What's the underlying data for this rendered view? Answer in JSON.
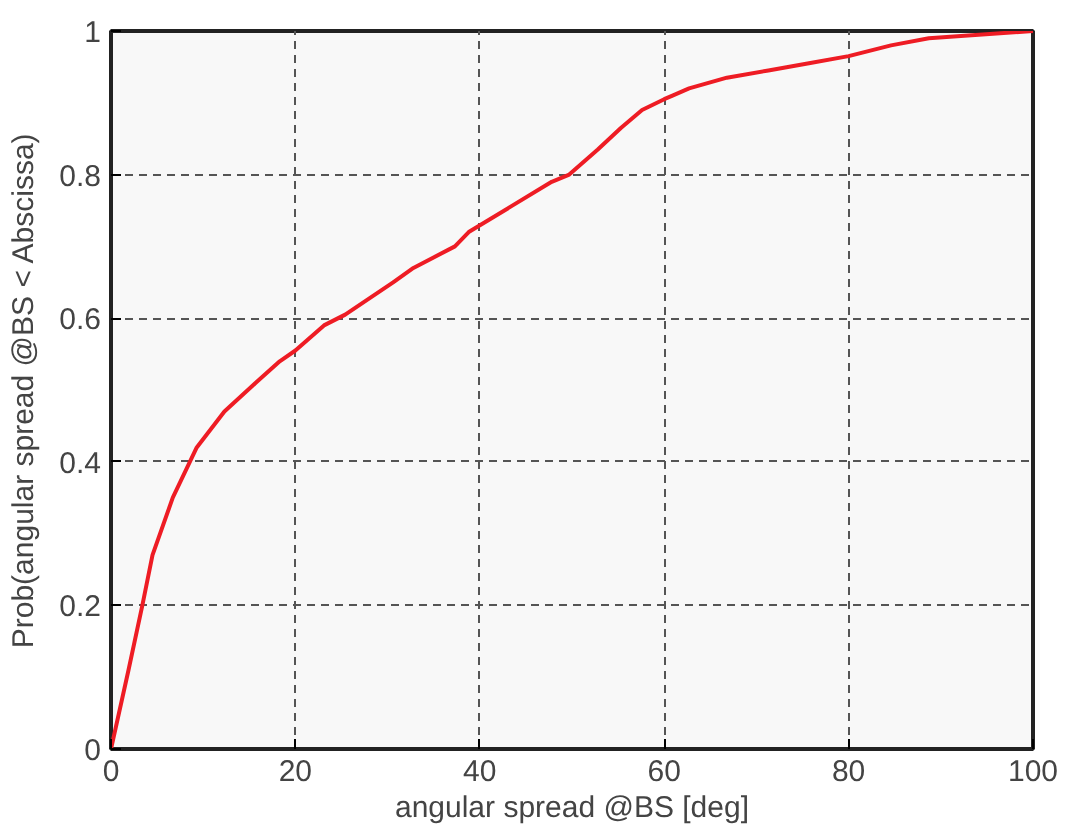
{
  "chart_data": {
    "type": "line",
    "xlabel": "angular spread @BS [deg]",
    "ylabel": "Prob(angular spread @BS < Abscissa)",
    "x": [
      0,
      1.9,
      3.4,
      4.5,
      6.7,
      9.3,
      12.3,
      15.7,
      18.3,
      20,
      23.1,
      25.4,
      30.6,
      32.8,
      37.3,
      38.8,
      43.3,
      47.8,
      49.7,
      52.8,
      55.3,
      57.6,
      60,
      60.9,
      62.7,
      66.8,
      71.3,
      75.7,
      80,
      84.6,
      88.7,
      100
    ],
    "series": [
      {
        "color": "#ee1c24",
        "values": [
          0,
          0.11,
          0.2,
          0.27,
          0.35,
          0.42,
          0.47,
          0.51,
          0.54,
          0.555,
          0.59,
          0.605,
          0.65,
          0.67,
          0.7,
          0.72,
          0.755,
          0.79,
          0.8,
          0.835,
          0.865,
          0.89,
          0.905,
          0.91,
          0.92,
          0.935,
          0.945,
          0.955,
          0.965,
          0.98,
          0.99,
          1.0
        ]
      }
    ],
    "xlim": [
      0,
      100
    ],
    "ylim": [
      0,
      1
    ],
    "xticks": [
      0,
      20,
      40,
      60,
      80,
      100
    ],
    "yticks": [
      0,
      0.2,
      0.4,
      0.6,
      0.8,
      1
    ],
    "grid": true,
    "line_style": "solid",
    "marker": "none"
  }
}
